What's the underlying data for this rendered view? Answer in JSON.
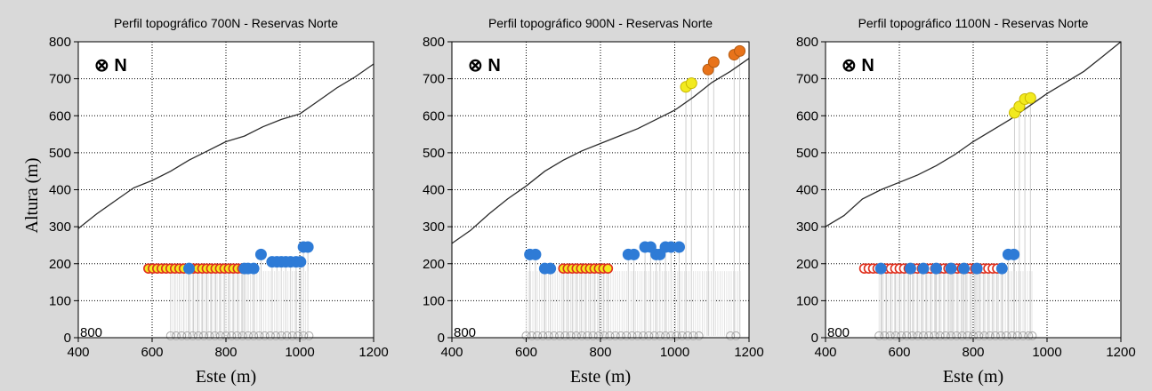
{
  "ylabel": "Altura (m)",
  "colors": {
    "terrain": "#2b2b2b",
    "blue": "#2e7bd6",
    "yellow": "#f2ea1f",
    "orange": "#e8731a",
    "red_outline": "#e0301e",
    "stem": "#cfcfcf",
    "base": "#a8a8a8",
    "grid": "#000000"
  },
  "chart_data": [
    {
      "type": "scatter",
      "title": "Perfil topográfico 700N - Reservas Norte",
      "xlabel": "Este (m)",
      "north_label": "⊗ N",
      "xlim": [
        400,
        1200
      ],
      "ylim": [
        0,
        800
      ],
      "xticks": [
        400,
        600,
        800,
        1000,
        1200
      ],
      "yticks": [
        0,
        100,
        200,
        300,
        400,
        500,
        600,
        700,
        800
      ],
      "corner_label": "800",
      "terrain": [
        [
          400,
          295
        ],
        [
          450,
          335
        ],
        [
          500,
          370
        ],
        [
          550,
          405
        ],
        [
          600,
          425
        ],
        [
          650,
          450
        ],
        [
          700,
          480
        ],
        [
          750,
          505
        ],
        [
          800,
          530
        ],
        [
          850,
          545
        ],
        [
          900,
          570
        ],
        [
          950,
          590
        ],
        [
          1000,
          605
        ],
        [
          1050,
          640
        ],
        [
          1100,
          675
        ],
        [
          1150,
          705
        ],
        [
          1200,
          740
        ]
      ],
      "series": [
        {
          "style": "red_yellow",
          "x": [
            590,
            602,
            614,
            626,
            638,
            650,
            662,
            674,
            686,
            700,
            712,
            724,
            736,
            748,
            760,
            772,
            784,
            796,
            808,
            820,
            832,
            844
          ],
          "y": [
            187,
            187,
            187,
            187,
            187,
            187,
            187,
            187,
            187,
            187,
            187,
            187,
            187,
            187,
            187,
            187,
            187,
            187,
            187,
            187,
            187,
            187
          ]
        },
        {
          "style": "blue",
          "x": [
            700,
            850,
            860,
            875,
            895,
            925,
            938,
            950,
            962,
            975,
            990,
            1002,
            1010,
            1022
          ],
          "y": [
            187,
            187,
            187,
            187,
            225,
            205,
            205,
            205,
            205,
            205,
            205,
            205,
            245,
            245
          ]
        }
      ],
      "base": {
        "y": 5,
        "x": [
          650,
          665,
          680,
          695,
          710,
          725,
          740,
          755,
          770,
          785,
          800,
          815,
          830,
          845,
          860,
          875,
          890,
          905,
          920,
          935,
          950,
          965,
          980,
          995,
          1010,
          1025
        ]
      },
      "stems": [
        650,
        1025
      ]
    },
    {
      "type": "scatter",
      "title": "Perfil topográfico 900N - Reservas Norte",
      "xlabel": "Este (m)",
      "north_label": "⊗ N",
      "xlim": [
        400,
        1200
      ],
      "ylim": [
        0,
        800
      ],
      "xticks": [
        400,
        600,
        800,
        1000,
        1200
      ],
      "yticks": [
        0,
        100,
        200,
        300,
        400,
        500,
        600,
        700,
        800
      ],
      "corner_label": "800",
      "terrain": [
        [
          400,
          255
        ],
        [
          450,
          290
        ],
        [
          500,
          335
        ],
        [
          550,
          375
        ],
        [
          600,
          410
        ],
        [
          650,
          450
        ],
        [
          700,
          480
        ],
        [
          750,
          505
        ],
        [
          800,
          525
        ],
        [
          850,
          545
        ],
        [
          900,
          565
        ],
        [
          950,
          590
        ],
        [
          1000,
          615
        ],
        [
          1050,
          650
        ],
        [
          1100,
          690
        ],
        [
          1150,
          720
        ],
        [
          1200,
          755
        ]
      ],
      "series": [
        {
          "style": "blue",
          "x": [
            610,
            625,
            650,
            665,
            875,
            890,
            920,
            935,
            950,
            960,
            975,
            990,
            1012
          ],
          "y": [
            225,
            225,
            187,
            187,
            225,
            225,
            245,
            245,
            225,
            225,
            245,
            245,
            245
          ]
        },
        {
          "style": "red_yellow",
          "x": [
            700,
            712,
            724,
            736,
            748,
            760,
            772,
            784,
            796,
            808,
            820
          ],
          "y": [
            187,
            187,
            187,
            187,
            187,
            187,
            187,
            187,
            187,
            187,
            187
          ]
        },
        {
          "style": "yellow",
          "x": [
            1030,
            1045
          ],
          "y": [
            678,
            688
          ]
        },
        {
          "style": "orange",
          "x": [
            1090,
            1105,
            1160,
            1175
          ],
          "y": [
            725,
            745,
            765,
            775
          ]
        }
      ],
      "base": {
        "y": 5,
        "x": [
          600,
          615,
          630,
          645,
          660,
          675,
          690,
          705,
          720,
          735,
          750,
          765,
          780,
          795,
          810,
          825,
          840,
          855,
          870,
          885,
          900,
          915,
          930,
          945,
          960,
          975,
          990,
          1005,
          1020,
          1035,
          1050,
          1065,
          1150,
          1165
        ]
      },
      "stems": [
        600,
        1180
      ]
    },
    {
      "type": "scatter",
      "title": "Perfil topográfico 1100N - Reservas Norte",
      "xlabel": "Este (m)",
      "north_label": "⊗ N",
      "xlim": [
        400,
        1200
      ],
      "ylim": [
        0,
        800
      ],
      "xticks": [
        400,
        600,
        800,
        1000,
        1200
      ],
      "yticks": [
        0,
        100,
        200,
        300,
        400,
        500,
        600,
        700,
        800
      ],
      "corner_label": "800",
      "terrain": [
        [
          400,
          300
        ],
        [
          450,
          330
        ],
        [
          500,
          375
        ],
        [
          550,
          400
        ],
        [
          600,
          420
        ],
        [
          650,
          440
        ],
        [
          700,
          465
        ],
        [
          750,
          495
        ],
        [
          800,
          530
        ],
        [
          850,
          560
        ],
        [
          900,
          590
        ],
        [
          950,
          625
        ],
        [
          1000,
          660
        ],
        [
          1050,
          690
        ],
        [
          1100,
          720
        ],
        [
          1150,
          760
        ],
        [
          1200,
          800
        ]
      ],
      "series": [
        {
          "style": "red",
          "x": [
            505,
            517,
            529,
            541,
            553,
            565,
            577,
            589,
            601,
            613,
            625,
            637,
            649,
            661,
            673,
            685,
            697,
            709,
            721,
            733,
            745,
            757,
            769,
            781,
            793,
            805,
            817,
            829,
            841,
            853,
            865
          ],
          "y": [
            187,
            187,
            187,
            187,
            187,
            187,
            187,
            187,
            187,
            187,
            187,
            187,
            187,
            187,
            187,
            187,
            187,
            187,
            187,
            187,
            187,
            187,
            187,
            187,
            187,
            187,
            187,
            187,
            187,
            187,
            187
          ]
        },
        {
          "style": "blue",
          "x": [
            550,
            630,
            665,
            700,
            740,
            775,
            810,
            878,
            895,
            910
          ],
          "y": [
            187,
            187,
            187,
            187,
            187,
            187,
            187,
            187,
            225,
            225
          ]
        },
        {
          "style": "yellow",
          "x": [
            912,
            925,
            940,
            955
          ],
          "y": [
            608,
            625,
            645,
            648
          ]
        }
      ],
      "base": {
        "y": 5,
        "x": [
          545,
          560,
          575,
          590,
          605,
          620,
          635,
          650,
          665,
          680,
          695,
          710,
          725,
          740,
          755,
          770,
          785,
          800,
          815,
          830,
          845,
          860,
          875,
          890,
          905,
          920,
          935,
          950,
          960
        ]
      },
      "stems": [
        545,
        960
      ]
    }
  ]
}
